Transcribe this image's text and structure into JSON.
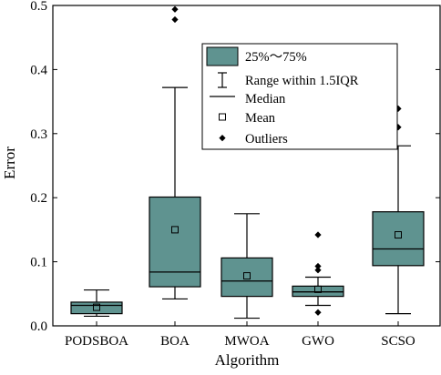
{
  "chart_data": {
    "type": "box",
    "xlabel": "Algorithm",
    "ylabel": "Error",
    "ylim": [
      0,
      0.5
    ],
    "yticks": [
      "0.0",
      "0.1",
      "0.2",
      "0.3",
      "0.4",
      "0.5"
    ],
    "ytick_values": [
      0,
      0.1,
      0.2,
      0.3,
      0.4,
      0.5
    ],
    "categories": [
      "PODSBOA",
      "BOA",
      "MWOA",
      "GWO",
      "SCSO"
    ],
    "box_color": "#5f9390",
    "edge_color": "#000000",
    "legend_position": "top-right (inside plot)",
    "legend": {
      "box": "25%～75%",
      "whisker": "Range within 1.5IQR",
      "median": "Median",
      "mean": "Mean",
      "outliers": "Outliers"
    },
    "boxes": [
      {
        "category": "PODSBOA",
        "whisker_low": 0.015,
        "q1": 0.019,
        "median": 0.032,
        "q3": 0.037,
        "whisker_high": 0.056,
        "mean": 0.029,
        "outliers": []
      },
      {
        "category": "BOA",
        "whisker_low": 0.042,
        "q1": 0.061,
        "median": 0.084,
        "q3": 0.201,
        "whisker_high": 0.372,
        "mean": 0.15,
        "outliers": [
          0.478,
          0.494
        ]
      },
      {
        "category": "MWOA",
        "whisker_low": 0.012,
        "q1": 0.046,
        "median": 0.07,
        "q3": 0.106,
        "whisker_high": 0.175,
        "mean": 0.078,
        "outliers": []
      },
      {
        "category": "GWO",
        "whisker_low": 0.032,
        "q1": 0.046,
        "median": 0.053,
        "q3": 0.062,
        "whisker_high": 0.076,
        "mean": 0.057,
        "outliers": [
          0.021,
          0.087,
          0.093,
          0.142
        ]
      },
      {
        "category": "SCSO",
        "whisker_low": 0.019,
        "q1": 0.094,
        "median": 0.12,
        "q3": 0.178,
        "whisker_high": 0.281,
        "mean": 0.142,
        "outliers": [
          0.31,
          0.339
        ]
      }
    ]
  }
}
